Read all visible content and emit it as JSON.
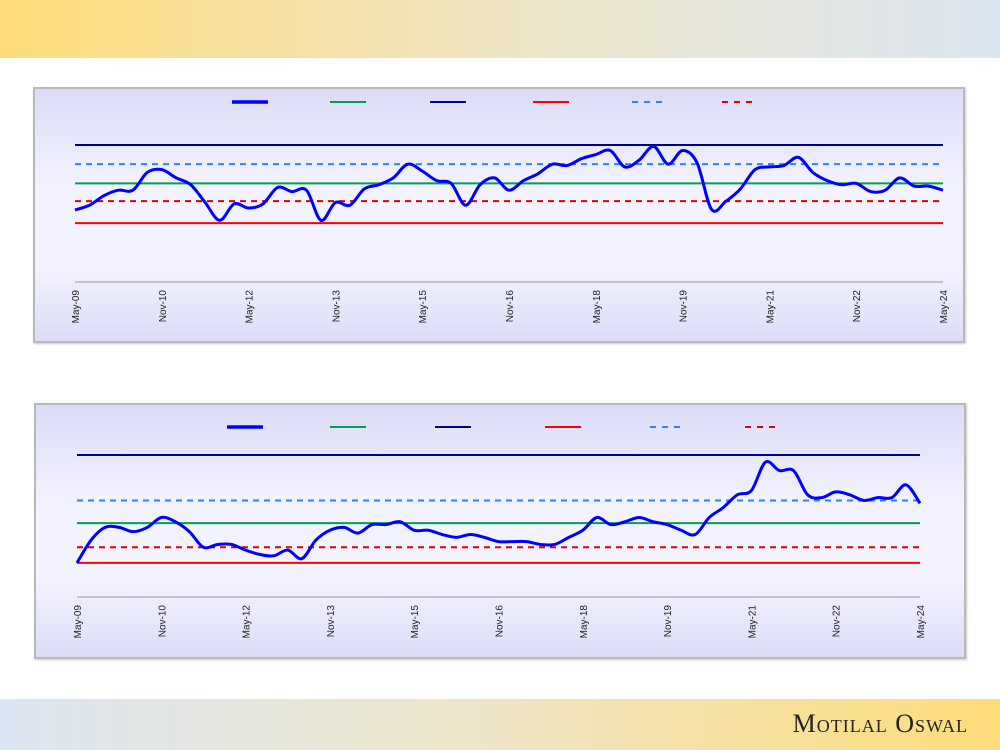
{
  "brand": {
    "name": "Motilal Oswal"
  },
  "colors": {
    "series": "#0000ff",
    "average": "#00a050",
    "max": "#000090",
    "min": "#ff0000",
    "plus_sd": "#3080ff",
    "minus_sd": "#e00000"
  },
  "chart_data": [
    {
      "type": "line",
      "x_tick_labels": [
        "May-09",
        "Nov-10",
        "May-12",
        "Nov-13",
        "May-15",
        "Nov-16",
        "May-18",
        "Nov-19",
        "May-21",
        "Nov-22",
        "May-24"
      ],
      "x_range": [
        "May-09",
        "May-24"
      ],
      "sampling": "quarterly",
      "ylim": [
        0,
        110
      ],
      "grid": false,
      "legend": "top",
      "series": [
        {
          "style": "solid-thick",
          "color": "#0000ff",
          "values": [
            52.6,
            56,
            63,
            67,
            67,
            80,
            82,
            76,
            71,
            58,
            45,
            57,
            54,
            57,
            69,
            66,
            67,
            45,
            58,
            56,
            68,
            71,
            76,
            86,
            81,
            74,
            72,
            56,
            71,
            76,
            67,
            74,
            79,
            86,
            85,
            90,
            93,
            96,
            84,
            89,
            99,
            86,
            96,
            87,
            53,
            59,
            68,
            82,
            84,
            85,
            91,
            80,
            74,
            71,
            72,
            66,
            67,
            76,
            70,
            70,
            67
          ]
        }
      ],
      "reference_lines": [
        {
          "style": "solid",
          "color": "#000090",
          "value": 100
        },
        {
          "style": "dashed",
          "color": "#3080ff",
          "value": 86
        },
        {
          "style": "solid",
          "color": "#00a050",
          "value": 72
        },
        {
          "style": "dashed",
          "color": "#e00000",
          "value": 59
        },
        {
          "style": "solid",
          "color": "#ff0000",
          "value": 43
        }
      ]
    },
    {
      "type": "line",
      "x_tick_labels": [
        "May-09",
        "Nov-10",
        "May-12",
        "Nov-13",
        "May-15",
        "Nov-16",
        "May-18",
        "Nov-19",
        "May-21",
        "Nov-22",
        "May-24"
      ],
      "x_range": [
        "May-09",
        "May-24"
      ],
      "sampling": "quarterly",
      "ylim": [
        0,
        110
      ],
      "grid": false,
      "legend": "top",
      "series": [
        {
          "style": "solid-thick",
          "color": "#0000ff",
          "values": [
            24,
            40,
            49,
            49,
            46,
            49,
            56,
            53,
            46,
            35,
            37,
            37,
            33,
            30,
            29,
            33,
            27,
            40,
            47,
            49,
            45,
            51,
            51,
            53,
            47,
            47,
            44,
            42,
            44,
            42,
            39,
            39,
            39,
            37,
            37,
            42,
            47,
            56,
            51,
            53,
            56,
            53,
            51,
            47,
            44,
            56,
            63,
            72,
            75,
            95,
            89,
            89,
            72,
            70,
            74,
            72,
            68,
            70,
            70,
            79,
            66
          ]
        }
      ],
      "reference_lines": [
        {
          "style": "solid",
          "color": "#000090",
          "value": 100
        },
        {
          "style": "dashed",
          "color": "#3080ff",
          "value": 68
        },
        {
          "style": "solid",
          "color": "#00a050",
          "value": 52
        },
        {
          "style": "dashed",
          "color": "#e00000",
          "value": 35
        },
        {
          "style": "solid",
          "color": "#ff0000",
          "value": 24
        }
      ]
    }
  ]
}
